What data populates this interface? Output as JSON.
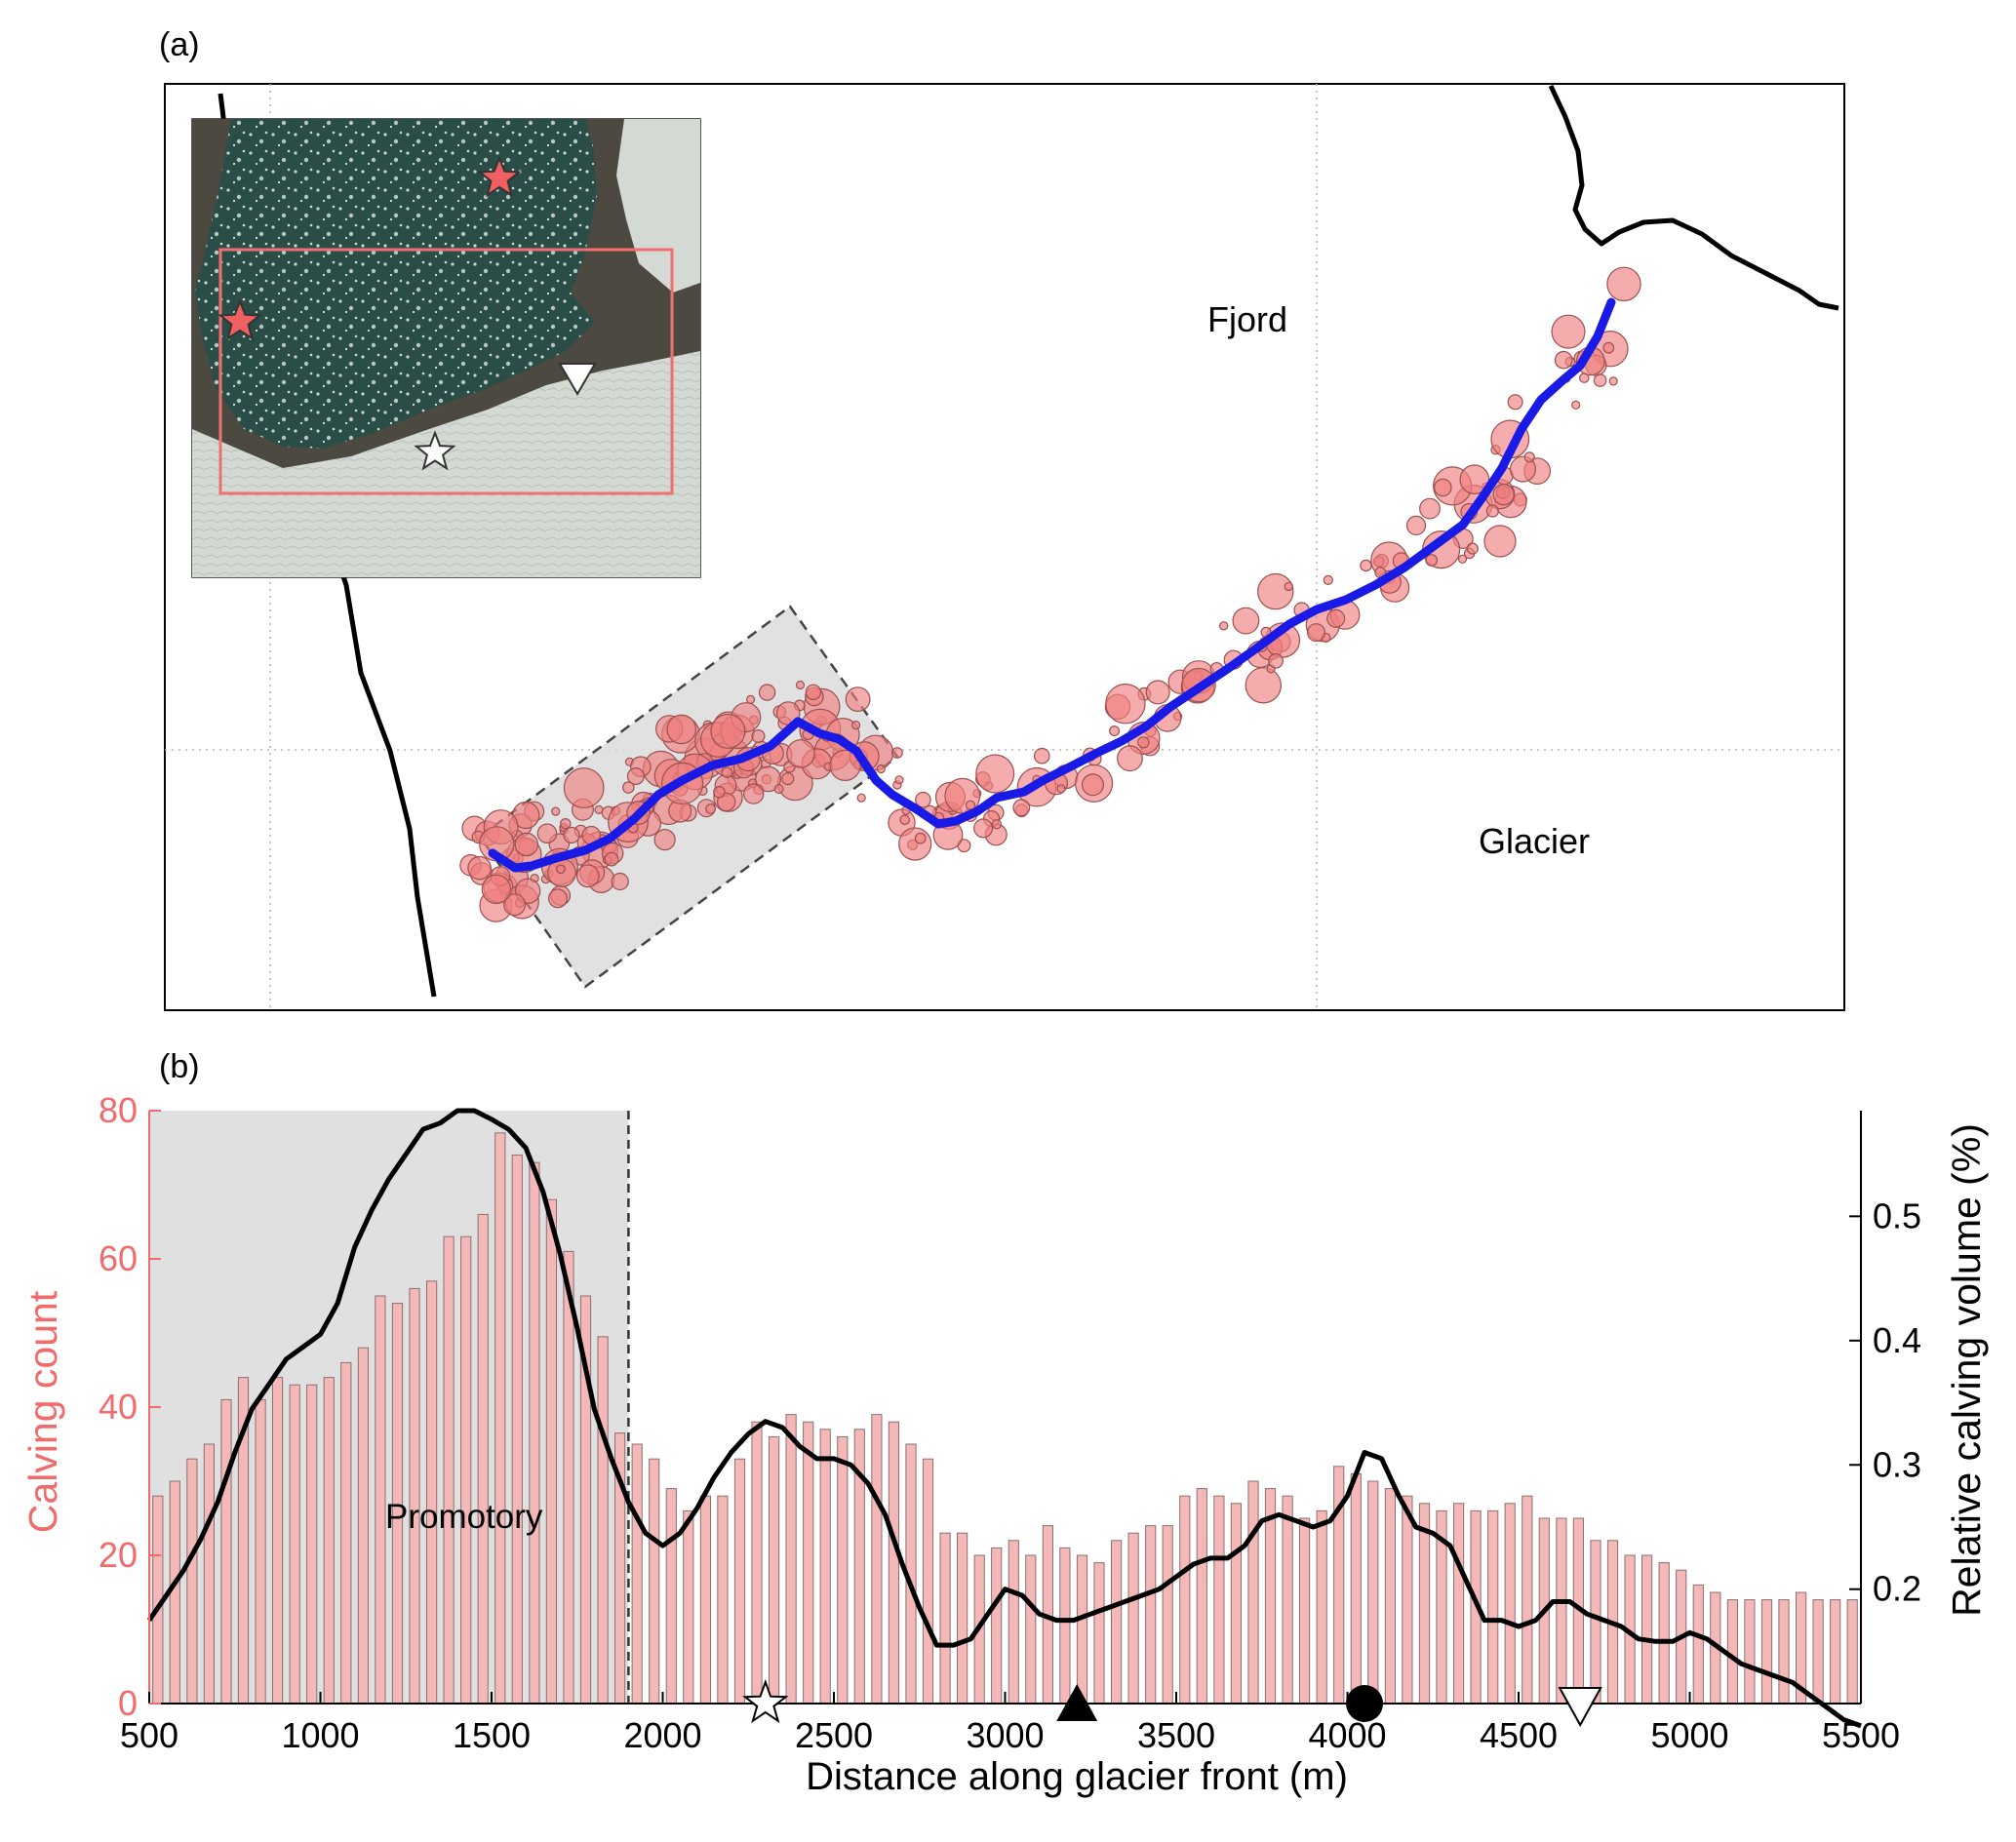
{
  "panel_a": {
    "label": "(a)",
    "fjord_label": "Fjord",
    "glacier_label": "Glacier",
    "colors": {
      "event_fill": "#f08080",
      "event_stroke": "#9c5050",
      "front_line": "#1a1ae6",
      "coast_line": "#000000",
      "promontory_box": "#cccccc",
      "inset_water": "#2a4d47",
      "inset_ice": "#d4d9d3",
      "inset_rock": "#4c4a40",
      "inset_box": "#f07070",
      "star_red": "#f06060"
    },
    "icons": [
      "red-star-icon",
      "white-star-icon",
      "down-triangle-icon"
    ]
  },
  "panel_b": {
    "label": "(b)",
    "promontory_label": "Promotory",
    "colors": {
      "bars": "#f4b8b8",
      "bar_stroke": "#8a7070",
      "line": "#000000",
      "left_axis": "#f06b6b",
      "shade": "#e0e0e0"
    },
    "markers": [
      {
        "name": "white-star-icon",
        "x": 2300
      },
      {
        "name": "up-triangle-icon",
        "x": 3210
      },
      {
        "name": "filled-circle-icon",
        "x": 4050
      },
      {
        "name": "down-triangle-icon",
        "x": 4680
      }
    ]
  },
  "chart_data": {
    "type": "bar",
    "xlabel": "Distance along glacier front (m)",
    "ylabel": "Calving count",
    "y2label": "Relative calving volume (%)",
    "xlim": [
      500,
      5500
    ],
    "ylim": [
      0,
      80
    ],
    "y2lim": [
      0.108,
      0.585
    ],
    "xticks": [
      500,
      1000,
      1500,
      2000,
      2500,
      3000,
      3500,
      4000,
      4500,
      5000,
      5500
    ],
    "yticks": [
      0,
      20,
      40,
      60,
      80
    ],
    "y2ticks": [
      0.2,
      0.3,
      0.4,
      0.5
    ],
    "shaded_region": [
      500,
      1900
    ],
    "bin_width": 50,
    "bars": {
      "x": [
        500,
        550,
        600,
        650,
        700,
        750,
        800,
        850,
        900,
        950,
        1000,
        1050,
        1100,
        1150,
        1200,
        1250,
        1300,
        1350,
        1400,
        1450,
        1500,
        1550,
        1600,
        1650,
        1700,
        1750,
        1800,
        1850,
        1900,
        1950,
        2000,
        2050,
        2100,
        2150,
        2200,
        2250,
        2300,
        2350,
        2400,
        2450,
        2500,
        2550,
        2600,
        2650,
        2700,
        2750,
        2800,
        2850,
        2900,
        2950,
        3000,
        3050,
        3100,
        3150,
        3200,
        3250,
        3300,
        3350,
        3400,
        3450,
        3500,
        3550,
        3600,
        3650,
        3700,
        3750,
        3800,
        3850,
        3900,
        3950,
        4000,
        4050,
        4100,
        4150,
        4200,
        4250,
        4300,
        4350,
        4400,
        4450,
        4500,
        4550,
        4600,
        4650,
        4700,
        4750,
        4800,
        4850,
        4900,
        4950,
        5000,
        5050,
        5100,
        5150,
        5200,
        5250,
        5300,
        5350,
        5400,
        5450
      ],
      "values": [
        28,
        30,
        33,
        35,
        41,
        44,
        41,
        44,
        43,
        43,
        44,
        46,
        48,
        55,
        54,
        56,
        57,
        63,
        63,
        66,
        77,
        74,
        73,
        68,
        61,
        55,
        49.5,
        36.5,
        35,
        33,
        29,
        26,
        28,
        28,
        33,
        38,
        36,
        39,
        38,
        37,
        36,
        37,
        39,
        38,
        35,
        33,
        23,
        23,
        20,
        21,
        22,
        20,
        24,
        21,
        20,
        19,
        22,
        23,
        24,
        24,
        28,
        29,
        28,
        27,
        30,
        29,
        28,
        25,
        26,
        32,
        31,
        30,
        29,
        28,
        27,
        26,
        27,
        26,
        26,
        27,
        28,
        25,
        25,
        25,
        22,
        22,
        20,
        20,
        19,
        18,
        16,
        15,
        14,
        14,
        14,
        14,
        15,
        14,
        14,
        14
      ]
    },
    "line": {
      "x": [
        500,
        550,
        600,
        650,
        700,
        750,
        800,
        850,
        900,
        950,
        1000,
        1050,
        1100,
        1150,
        1200,
        1250,
        1300,
        1350,
        1400,
        1450,
        1500,
        1550,
        1600,
        1650,
        1700,
        1750,
        1800,
        1850,
        1900,
        1950,
        2000,
        2050,
        2100,
        2150,
        2200,
        2250,
        2300,
        2350,
        2400,
        2450,
        2500,
        2550,
        2600,
        2650,
        2700,
        2750,
        2800,
        2850,
        2900,
        2950,
        3000,
        3050,
        3100,
        3150,
        3200,
        3250,
        3300,
        3350,
        3400,
        3450,
        3500,
        3550,
        3600,
        3650,
        3700,
        3750,
        3800,
        3850,
        3900,
        3950,
        4000,
        4050,
        4100,
        4150,
        4200,
        4250,
        4300,
        4350,
        4400,
        4450,
        4500,
        4550,
        4600,
        4650,
        4700,
        4750,
        4800,
        4850,
        4900,
        4950,
        5000,
        5050,
        5100,
        5150,
        5200,
        5250,
        5300,
        5350,
        5400,
        5450,
        5500
      ],
      "values": [
        0.175,
        0.195,
        0.215,
        0.24,
        0.27,
        0.31,
        0.345,
        0.365,
        0.385,
        0.395,
        0.405,
        0.43,
        0.475,
        0.505,
        0.53,
        0.55,
        0.57,
        0.575,
        0.585,
        0.585,
        0.578,
        0.57,
        0.555,
        0.52,
        0.47,
        0.41,
        0.345,
        0.305,
        0.27,
        0.245,
        0.235,
        0.245,
        0.265,
        0.29,
        0.31,
        0.325,
        0.335,
        0.33,
        0.315,
        0.305,
        0.305,
        0.3,
        0.285,
        0.26,
        0.22,
        0.185,
        0.155,
        0.155,
        0.16,
        0.18,
        0.2,
        0.195,
        0.18,
        0.175,
        0.175,
        0.18,
        0.185,
        0.19,
        0.195,
        0.2,
        0.21,
        0.22,
        0.225,
        0.225,
        0.235,
        0.255,
        0.26,
        0.255,
        0.25,
        0.255,
        0.275,
        0.31,
        0.305,
        0.275,
        0.25,
        0.245,
        0.235,
        0.205,
        0.175,
        0.175,
        0.17,
        0.175,
        0.19,
        0.19,
        0.18,
        0.175,
        0.17,
        0.16,
        0.158,
        0.158,
        0.165,
        0.16,
        0.15,
        0.14,
        0.135,
        0.13,
        0.125,
        0.115,
        0.105,
        0.095,
        0.09
      ]
    }
  }
}
